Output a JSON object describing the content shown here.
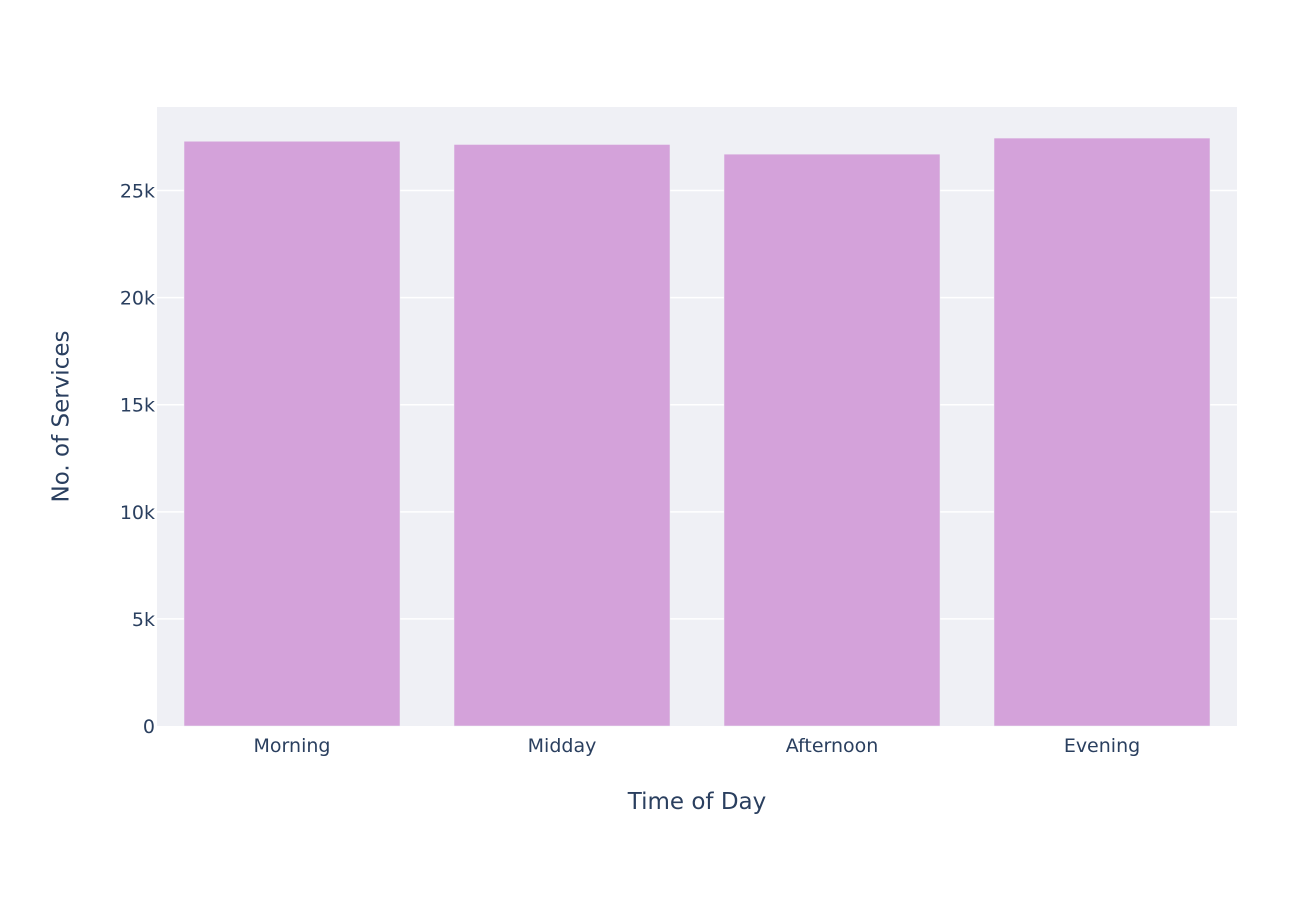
{
  "chart_data": {
    "type": "bar",
    "categories": [
      "Morning",
      "Midday",
      "Afternoon",
      "Evening"
    ],
    "values": [
      27300,
      27150,
      26700,
      27450
    ],
    "xlabel": "Time of Day",
    "ylabel": "No. of Services",
    "ylim": [
      0,
      28900
    ],
    "yticks": [
      0,
      5000,
      10000,
      15000,
      20000,
      25000
    ],
    "ytick_labels": [
      "0",
      "5k",
      "10k",
      "15k",
      "20k",
      "25k"
    ],
    "grid": true,
    "legend": "none",
    "colors": {
      "bar": "#d4a2da",
      "plot_background": "#eff0f5",
      "grid": "#ffffff",
      "text": "#2a3f5f"
    }
  }
}
